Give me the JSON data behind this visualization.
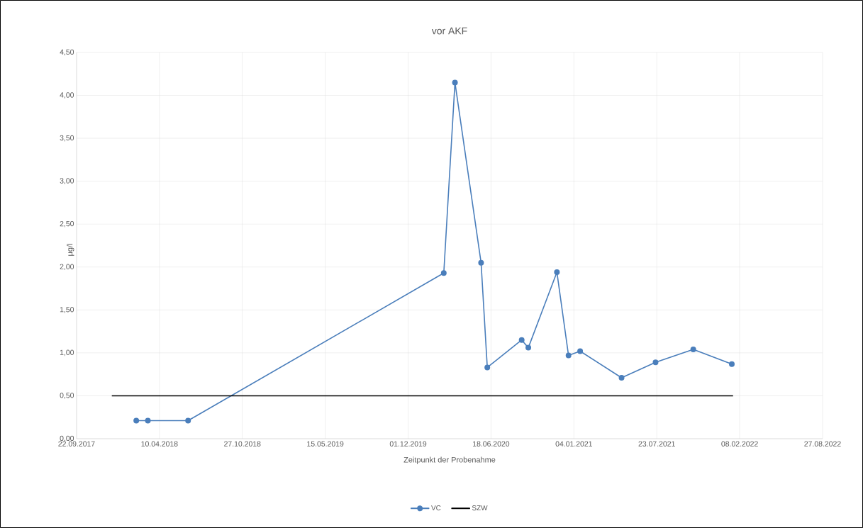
{
  "chart_data": {
    "type": "line",
    "title": "vor AKF",
    "xlabel": "Zeitpunkt der Probenahme",
    "ylabel": "µg/l",
    "xlim": [
      "2017-09-22",
      "2022-08-27"
    ],
    "xticks": [
      {
        "value": "2017-09-22",
        "label": "22.09.2017"
      },
      {
        "value": "2018-04-10",
        "label": "10.04.2018"
      },
      {
        "value": "2018-10-27",
        "label": "27.10.2018"
      },
      {
        "value": "2019-05-15",
        "label": "15.05.2019"
      },
      {
        "value": "2019-12-01",
        "label": "01.12.2019"
      },
      {
        "value": "2020-06-18",
        "label": "18.06.2020"
      },
      {
        "value": "2021-01-04",
        "label": "04.01.2021"
      },
      {
        "value": "2021-07-23",
        "label": "23.07.2021"
      },
      {
        "value": "2022-02-08",
        "label": "08.02.2022"
      },
      {
        "value": "2022-08-27",
        "label": "27.08.2022"
      }
    ],
    "ylim": [
      0,
      4.5
    ],
    "yticks": [
      {
        "value": 0,
        "label": "0,00"
      },
      {
        "value": 0.5,
        "label": "0,50"
      },
      {
        "value": 1,
        "label": "1,00"
      },
      {
        "value": 1.5,
        "label": "1,50"
      },
      {
        "value": 2,
        "label": "2,00"
      },
      {
        "value": 2.5,
        "label": "2,50"
      },
      {
        "value": 3,
        "label": "3,00"
      },
      {
        "value": 3.5,
        "label": "3,50"
      },
      {
        "value": 4,
        "label": "4,00"
      },
      {
        "value": 4.5,
        "label": "4,50"
      }
    ],
    "grid": true,
    "legend": "bottom",
    "series": [
      {
        "name": "VC",
        "color": "#4a7ebb",
        "marker": "circle",
        "x": [
          "2018-02-13",
          "2018-03-13",
          "2018-06-18",
          "2020-02-25",
          "2020-03-23",
          "2020-05-25",
          "2020-06-09",
          "2020-08-31",
          "2020-09-16",
          "2020-11-24",
          "2020-12-22",
          "2021-01-19",
          "2021-04-29",
          "2021-07-20",
          "2021-10-19",
          "2022-01-20"
        ],
        "values": [
          0.21,
          0.21,
          0.21,
          1.93,
          4.15,
          2.05,
          0.83,
          1.15,
          1.06,
          1.94,
          0.97,
          1.02,
          0.71,
          0.89,
          1.04,
          0.87
        ]
      },
      {
        "name": "SZW",
        "color": "#000000",
        "marker": "none",
        "x": [
          "2017-12-16",
          "2022-01-23"
        ],
        "values": [
          0.5,
          0.5
        ]
      }
    ]
  }
}
